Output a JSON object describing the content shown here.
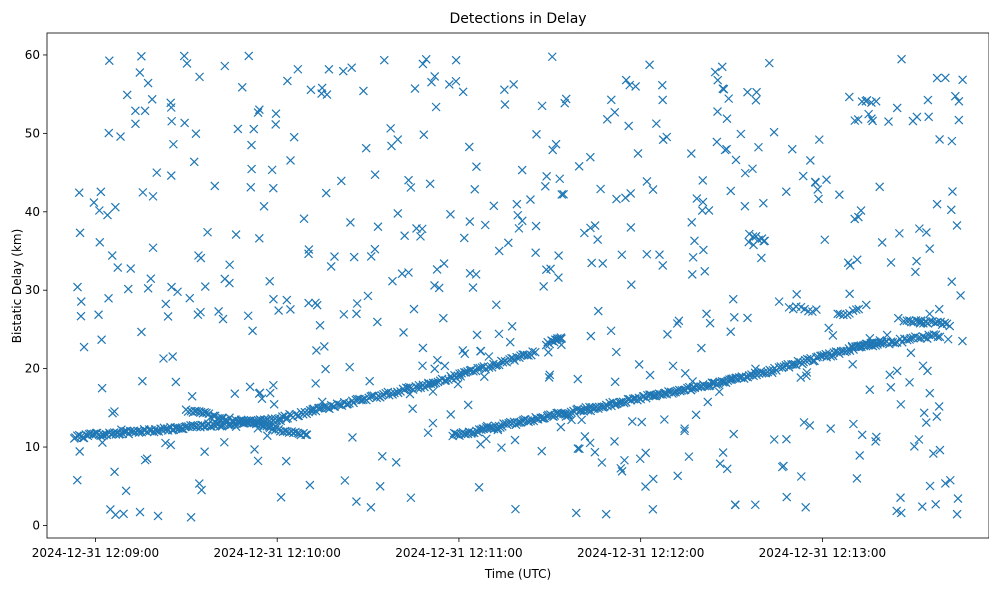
{
  "chart_data": {
    "type": "scatter",
    "title": "Detections in Delay",
    "xlabel": "Time (UTC)",
    "ylabel": "Bistatic Delay (km)",
    "marker": "x",
    "color": "#1f77b4",
    "xlim": [
      "2024-12-31 12:08:44",
      "2024-12-31 12:13:55"
    ],
    "ylim": [
      -1.6,
      62.8
    ],
    "x_ticks": [
      "2024-12-31 12:09:00",
      "2024-12-31 12:10:00",
      "2024-12-31 12:11:00",
      "2024-12-31 12:12:00",
      "2024-12-31 12:13:00"
    ],
    "y_ticks": [
      0,
      10,
      20,
      30,
      40,
      50,
      60
    ],
    "grid": false,
    "legend": "none",
    "tracks": [
      {
        "x_start": "2024-12-31 12:08:53",
        "x_end": "2024-12-31 12:09:58",
        "y_start": 11.3,
        "y_end": 13.4,
        "points": 120
      },
      {
        "x_start": "2024-12-31 12:09:30",
        "x_end": "2024-12-31 12:10:10",
        "y_start": 14.7,
        "y_end": 11.5,
        "points": 60
      },
      {
        "x_start": "2024-12-31 12:09:58",
        "x_end": "2024-12-31 12:10:50",
        "y_start": 13.4,
        "y_end": 18.0,
        "points": 85
      },
      {
        "x_start": "2024-12-31 12:10:50",
        "x_end": "2024-12-31 12:11:25",
        "y_start": 18.0,
        "y_end": 22.0,
        "points": 55
      },
      {
        "x_start": "2024-12-31 12:10:58",
        "x_end": "2024-12-31 12:12:30",
        "y_start": 11.5,
        "y_end": 18.5,
        "points": 170
      },
      {
        "x_start": "2024-12-31 12:12:30",
        "x_end": "2024-12-31 12:13:20",
        "y_start": 18.5,
        "y_end": 23.5,
        "points": 85
      },
      {
        "x_start": "2024-12-31 12:13:10",
        "x_end": "2024-12-31 12:13:39",
        "y_start": 22.7,
        "y_end": 24.3,
        "points": 40
      },
      {
        "x_start": "2024-12-31 12:13:27",
        "x_end": "2024-12-31 12:13:42",
        "y_start": 26.2,
        "y_end": 25.6,
        "points": 20
      },
      {
        "x_start": "2024-12-31 12:11:29",
        "x_end": "2024-12-31 12:11:34",
        "y_start": 23.2,
        "y_end": 23.8,
        "points": 12
      },
      {
        "x_start": "2024-12-31 12:12:36",
        "x_end": "2024-12-31 12:12:41",
        "y_start": 37.0,
        "y_end": 36.4,
        "points": 6
      },
      {
        "x_start": "2024-12-31 12:12:49",
        "x_end": "2024-12-31 12:12:58",
        "y_start": 27.8,
        "y_end": 27.4,
        "points": 8
      },
      {
        "x_start": "2024-12-31 12:13:05",
        "x_end": "2024-12-31 12:13:12",
        "y_start": 26.8,
        "y_end": 27.5,
        "points": 8
      }
    ],
    "clutter": {
      "x_range": [
        "2024-12-31 12:08:53",
        "2024-12-31 12:13:47"
      ],
      "y_range": [
        1.0,
        60.0
      ],
      "count": 560,
      "seed": 20241231
    }
  }
}
